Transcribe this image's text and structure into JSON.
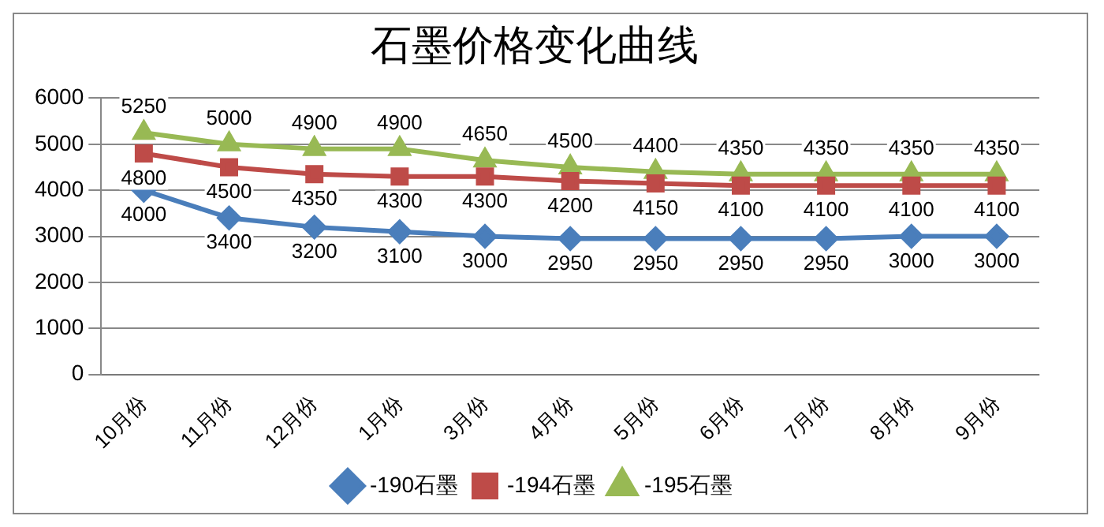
{
  "chart_data": {
    "type": "line",
    "title": "石墨价格变化曲线",
    "categories": [
      "10月份",
      "11月份",
      "12月份",
      "1月份",
      "3月份",
      "4月份",
      "5月份",
      "6月份",
      "7月份",
      "8月份",
      "9月份"
    ],
    "series": [
      {
        "name": "-190石墨",
        "color": "#4a7ebb",
        "marker": "diamond",
        "values": [
          4000,
          3400,
          3200,
          3100,
          3000,
          2950,
          2950,
          2950,
          2950,
          3000,
          3000
        ]
      },
      {
        "name": "-194石墨",
        "color": "#be4b48",
        "marker": "square",
        "values": [
          4800,
          4500,
          4350,
          4300,
          4300,
          4200,
          4150,
          4100,
          4100,
          4100,
          4100
        ]
      },
      {
        "name": "-195石墨",
        "color": "#98b954",
        "marker": "triangle",
        "values": [
          5250,
          5000,
          4900,
          4900,
          4650,
          4500,
          4400,
          4350,
          4350,
          4350,
          4350
        ]
      }
    ],
    "ylim": [
      0,
      6000
    ],
    "yticks": [
      0,
      1000,
      2000,
      3000,
      4000,
      5000,
      6000
    ],
    "grid": "y",
    "legend": "bottom",
    "data_labels": true
  }
}
